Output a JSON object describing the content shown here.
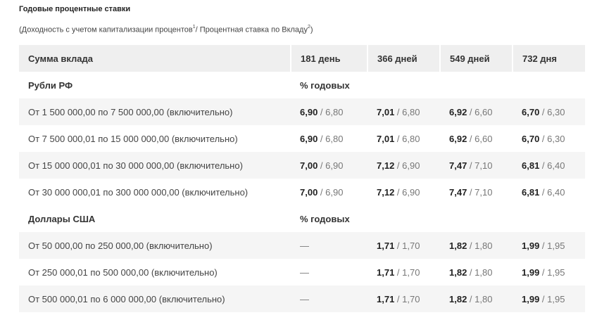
{
  "title": "Годовые процентные ставки",
  "subtitle": {
    "text_a": "(Доходность с учетом капитализации процентов",
    "sup_a": "1",
    "text_b": "/ Процентная ставка по Вкладу",
    "sup_b": "2",
    "text_c": ")"
  },
  "table": {
    "headers": [
      "Сумма вклада",
      "181 день",
      "366 дней",
      "549 дней",
      "732 дня"
    ],
    "sections": [
      {
        "label": "Рубли РФ",
        "unit": "% годовых",
        "rows": [
          {
            "range": "От 1 500 000,00 по 7 500 000,00 (включительно)",
            "rates": [
              {
                "main": "6,90",
                "alt": "6,80"
              },
              {
                "main": "7,01",
                "alt": "6,80"
              },
              {
                "main": "6,92",
                "alt": "6,60"
              },
              {
                "main": "6,70",
                "alt": "6,30"
              }
            ]
          },
          {
            "range": "От 7 500 000,01 по 15 000 000,00 (включительно)",
            "rates": [
              {
                "main": "6,90",
                "alt": "6,80"
              },
              {
                "main": "7,01",
                "alt": "6,80"
              },
              {
                "main": "6,92",
                "alt": "6,60"
              },
              {
                "main": "6,70",
                "alt": "6,30"
              }
            ]
          },
          {
            "range": "От 15 000 000,01 по 30 000 000,00 (включительно)",
            "rates": [
              {
                "main": "7,00",
                "alt": "6,90"
              },
              {
                "main": "7,12",
                "alt": "6,90"
              },
              {
                "main": "7,47",
                "alt": "7,10"
              },
              {
                "main": "6,81",
                "alt": "6,40"
              }
            ]
          },
          {
            "range": "От 30 000 000,01 по 300 000 000,00 (включительно)",
            "rates": [
              {
                "main": "7,00",
                "alt": "6,90"
              },
              {
                "main": "7,12",
                "alt": "6,90"
              },
              {
                "main": "7,47",
                "alt": "7,10"
              },
              {
                "main": "6,81",
                "alt": "6,40"
              }
            ]
          }
        ]
      },
      {
        "label": "Доллары США",
        "unit": "% годовых",
        "rows": [
          {
            "range": "От 50 000,00 по 250 000,00 (включительно)",
            "rates": [
              {
                "dash": "—"
              },
              {
                "main": "1,71",
                "alt": "1,70"
              },
              {
                "main": "1,82",
                "alt": "1,80"
              },
              {
                "main": "1,99",
                "alt": "1,95"
              }
            ]
          },
          {
            "range": "От 250 000,01 по 500 000,00 (включительно)",
            "rates": [
              {
                "dash": "—"
              },
              {
                "main": "1,71",
                "alt": "1,70"
              },
              {
                "main": "1,82",
                "alt": "1,80"
              },
              {
                "main": "1,99",
                "alt": "1,95"
              }
            ]
          },
          {
            "range": "От 500 000,01 по 6 000 000,00 (включительно)",
            "rates": [
              {
                "dash": "—"
              },
              {
                "main": "1,71",
                "alt": "1,70"
              },
              {
                "main": "1,82",
                "alt": "1,80"
              },
              {
                "main": "1,99",
                "alt": "1,95"
              }
            ]
          }
        ]
      }
    ]
  },
  "colors": {
    "header_bg": "#efefef",
    "row_shade": "#f5f5f5",
    "text": "#333333",
    "muted": "#777777"
  }
}
